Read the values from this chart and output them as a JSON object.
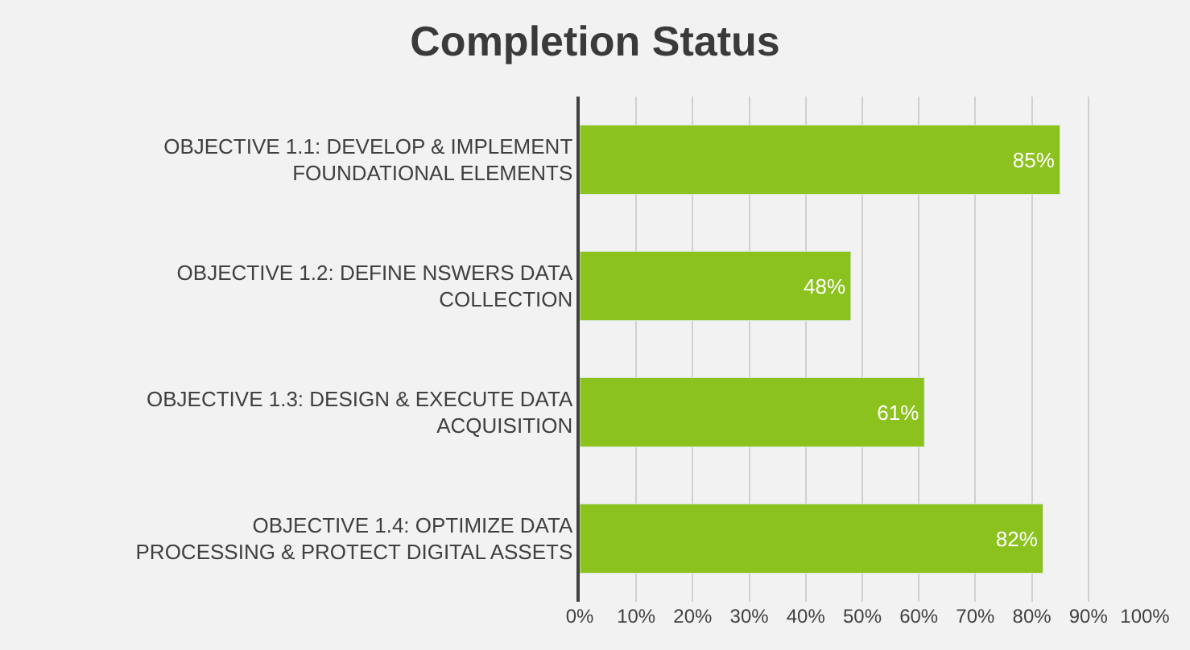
{
  "chart_data": {
    "type": "bar",
    "orientation": "horizontal",
    "title": "Completion Status",
    "categories": [
      "OBJECTIVE 1.1: DEVELOP & IMPLEMENT FOUNDATIONAL ELEMENTS",
      "OBJECTIVE 1.2: DEFINE NSWERS DATA COLLECTION",
      "OBJECTIVE 1.3: DESIGN & EXECUTE DATA ACQUISITION",
      "OBJECTIVE 1.4: OPTIMIZE DATA PROCESSING & PROTECT DIGITAL ASSETS"
    ],
    "values": [
      85,
      48,
      61,
      82
    ],
    "value_labels": [
      "85%",
      "48%",
      "61%",
      "82%"
    ],
    "color": "#8cc21e",
    "xlim": [
      0,
      100
    ],
    "xticks": [
      {
        "value": 0,
        "label": "0%"
      },
      {
        "value": 10,
        "label": "10%"
      },
      {
        "value": 20,
        "label": "20%"
      },
      {
        "value": 30,
        "label": "30%"
      },
      {
        "value": 40,
        "label": "40%"
      },
      {
        "value": 50,
        "label": "50%"
      },
      {
        "value": 60,
        "label": "60%"
      },
      {
        "value": 70,
        "label": "70%"
      },
      {
        "value": 80,
        "label": "80%"
      },
      {
        "value": 90,
        "label": "90%"
      },
      {
        "value": 100,
        "label": "100%"
      }
    ],
    "grid": "x",
    "legend": false
  }
}
